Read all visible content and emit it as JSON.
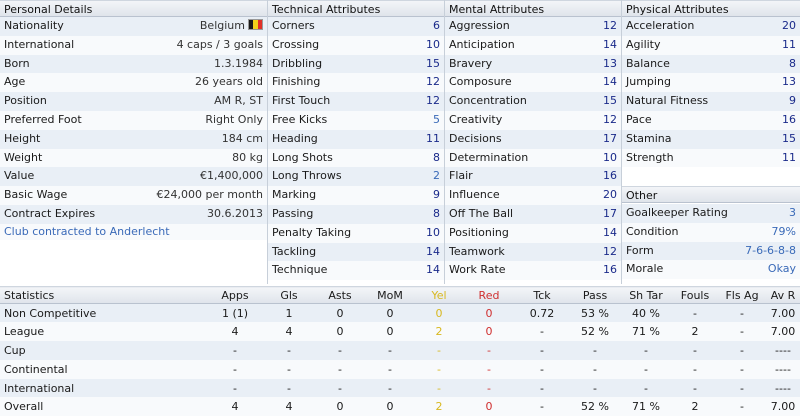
{
  "personal": {
    "title": "Personal Details",
    "rows": [
      {
        "label": "Nationality",
        "value": "Belgium"
      },
      {
        "label": "International",
        "value": "4 caps / 3 goals"
      },
      {
        "label": "Born",
        "value": "1.3.1984"
      },
      {
        "label": "Age",
        "value": "26 years old"
      },
      {
        "label": "Position",
        "value": "AM R, ST"
      },
      {
        "label": "Preferred Foot",
        "value": "Right Only"
      },
      {
        "label": "Height",
        "value": "184 cm"
      },
      {
        "label": "Weight",
        "value": "80 kg"
      },
      {
        "label": "Value",
        "value": "€1,400,000"
      },
      {
        "label": "Basic Wage",
        "value": "€24,000 per month"
      },
      {
        "label": "Contract Expires",
        "value": "30.6.2013"
      }
    ],
    "note": "Club contracted to Anderlecht",
    "flag_colors": [
      "#1a1a1a",
      "#f2d21b",
      "#e03027"
    ]
  },
  "technical": {
    "title": "Technical Attributes",
    "rows": [
      {
        "label": "Corners",
        "value": "6"
      },
      {
        "label": "Crossing",
        "value": "10"
      },
      {
        "label": "Dribbling",
        "value": "15"
      },
      {
        "label": "Finishing",
        "value": "12"
      },
      {
        "label": "First Touch",
        "value": "12"
      },
      {
        "label": "Free Kicks",
        "value": "5"
      },
      {
        "label": "Heading",
        "value": "11"
      },
      {
        "label": "Long Shots",
        "value": "8"
      },
      {
        "label": "Long Throws",
        "value": "2"
      },
      {
        "label": "Marking",
        "value": "9"
      },
      {
        "label": "Passing",
        "value": "8"
      },
      {
        "label": "Penalty Taking",
        "value": "10"
      },
      {
        "label": "Tackling",
        "value": "14"
      },
      {
        "label": "Technique",
        "value": "14"
      }
    ]
  },
  "mental": {
    "title": "Mental Attributes",
    "rows": [
      {
        "label": "Aggression",
        "value": "12"
      },
      {
        "label": "Anticipation",
        "value": "14"
      },
      {
        "label": "Bravery",
        "value": "13"
      },
      {
        "label": "Composure",
        "value": "14"
      },
      {
        "label": "Concentration",
        "value": "15"
      },
      {
        "label": "Creativity",
        "value": "12"
      },
      {
        "label": "Decisions",
        "value": "17"
      },
      {
        "label": "Determination",
        "value": "10"
      },
      {
        "label": "Flair",
        "value": "16"
      },
      {
        "label": "Influence",
        "value": "20"
      },
      {
        "label": "Off The Ball",
        "value": "17"
      },
      {
        "label": "Positioning",
        "value": "14"
      },
      {
        "label": "Teamwork",
        "value": "12"
      },
      {
        "label": "Work Rate",
        "value": "16"
      }
    ]
  },
  "physical": {
    "title": "Physical Attributes",
    "rows": [
      {
        "label": "Acceleration",
        "value": "20"
      },
      {
        "label": "Agility",
        "value": "11"
      },
      {
        "label": "Balance",
        "value": "8"
      },
      {
        "label": "Jumping",
        "value": "13"
      },
      {
        "label": "Natural Fitness",
        "value": "9"
      },
      {
        "label": "Pace",
        "value": "16"
      },
      {
        "label": "Stamina",
        "value": "15"
      },
      {
        "label": "Strength",
        "value": "11"
      }
    ]
  },
  "other": {
    "title": "Other",
    "rows": [
      {
        "label": "Goalkeeper Rating",
        "value": "3"
      },
      {
        "label": "Condition",
        "value": "79%"
      },
      {
        "label": "Form",
        "value": "7-6-6-8-8"
      },
      {
        "label": "Morale",
        "value": "Okay"
      }
    ]
  },
  "statistics": {
    "headers": [
      "Statistics",
      "Apps",
      "Gls",
      "Asts",
      "MoM",
      "Yel",
      "Red",
      "Tck",
      "Pass",
      "Sh Tar",
      "Fouls",
      "Fls Ag",
      "Av R"
    ],
    "rows": [
      [
        "Non Competitive",
        "1 (1)",
        "1",
        "0",
        "0",
        "0",
        "0",
        "0.72",
        "53 %",
        "40 %",
        "-",
        "-",
        "7.00"
      ],
      [
        "League",
        "4",
        "4",
        "0",
        "0",
        "2",
        "0",
        "-",
        "52 %",
        "71 %",
        "2",
        "-",
        "7.00"
      ],
      [
        "Cup",
        "-",
        "-",
        "-",
        "-",
        "-",
        "-",
        "-",
        "-",
        "-",
        "-",
        "-",
        "----"
      ],
      [
        "Continental",
        "-",
        "-",
        "-",
        "-",
        "-",
        "-",
        "-",
        "-",
        "-",
        "-",
        "-",
        "----"
      ],
      [
        "International",
        "-",
        "-",
        "-",
        "-",
        "-",
        "-",
        "-",
        "-",
        "-",
        "-",
        "-",
        "----"
      ],
      [
        "Overall",
        "4",
        "4",
        "0",
        "0",
        "2",
        "0",
        "-",
        "52 %",
        "71 %",
        "2",
        "-",
        "7.00"
      ]
    ]
  },
  "colors": {
    "header_bg": "#dfe4eb",
    "row_alt": "#e9eff6",
    "value_blue": "#1a2a8a",
    "link_blue": "#3a6ab8",
    "yellow": "#d8b820",
    "red": "#d03030"
  }
}
